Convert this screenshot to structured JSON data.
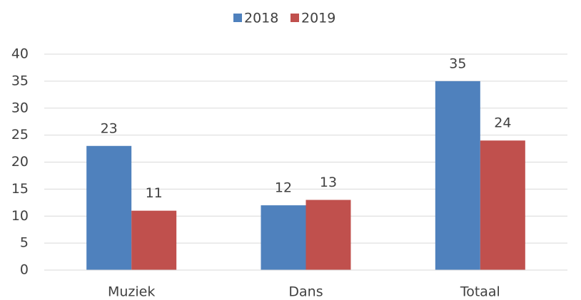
{
  "chart_data": {
    "type": "bar",
    "categories": [
      "Muziek",
      "Dans",
      "Totaal"
    ],
    "series": [
      {
        "name": "2018",
        "color": "#4f81bd",
        "values": [
          23,
          12,
          35
        ]
      },
      {
        "name": "2019",
        "color": "#c0504d",
        "values": [
          11,
          13,
          24
        ]
      }
    ],
    "ylim": [
      0,
      40
    ],
    "yticks": [
      0,
      5,
      10,
      15,
      20,
      25,
      30,
      35,
      40
    ],
    "grid": true,
    "legend": "top"
  }
}
